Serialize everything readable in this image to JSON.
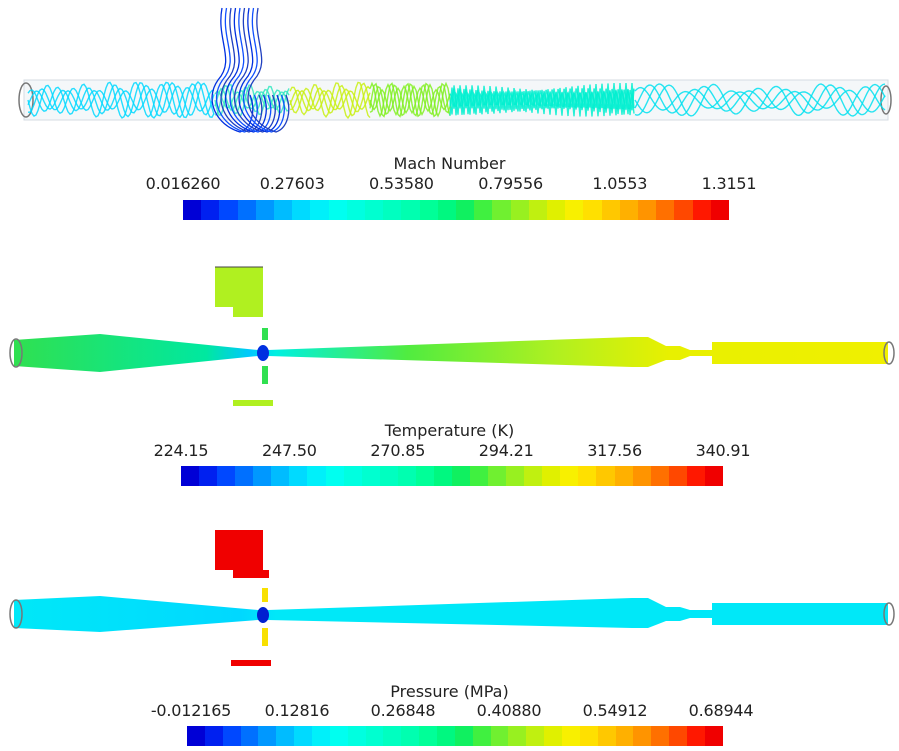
{
  "panels": [
    {
      "id": "mach",
      "legend_title": "Mach Number",
      "tick_labels": [
        "0.016260",
        "0.27603",
        "0.53580",
        "0.79556",
        "1.0553",
        "1.3151"
      ],
      "field": "Mach Number",
      "range": [
        0.01626,
        1.3151
      ]
    },
    {
      "id": "temperature",
      "legend_title": "Temperature (K)",
      "tick_labels": [
        "224.15",
        "247.50",
        "270.85",
        "294.21",
        "317.56",
        "340.91"
      ],
      "field": "Temperature",
      "range": [
        224.15,
        340.91
      ]
    },
    {
      "id": "pressure",
      "legend_title": "Pressure (MPa)",
      "tick_labels": [
        "-0.012165",
        "0.12816",
        "0.26848",
        "0.40880",
        "0.54912",
        "0.68944"
      ],
      "field": "Pressure",
      "range": [
        -0.012165,
        0.68944
      ]
    }
  ],
  "colormap": [
    "#0000d6",
    "#0020f0",
    "#0048ff",
    "#0070ff",
    "#0098ff",
    "#00bcff",
    "#00daff",
    "#00f0fa",
    "#00fff0",
    "#00ffe0",
    "#00ffd0",
    "#00ffc0",
    "#00ffb0",
    "#00ff98",
    "#00f880",
    "#10f060",
    "#40f040",
    "#70f030",
    "#98f020",
    "#c0f010",
    "#e0f000",
    "#f8f000",
    "#ffe000",
    "#ffc800",
    "#ffb000",
    "#ff9400",
    "#ff7000",
    "#ff4800",
    "#ff1800",
    "#f00000"
  ]
}
